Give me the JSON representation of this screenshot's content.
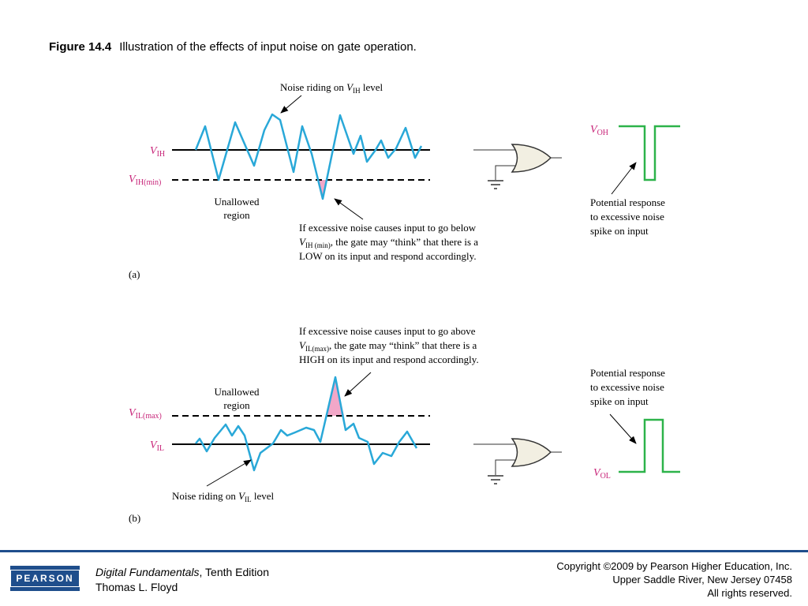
{
  "title": {
    "figure_label": "Figure 14.4",
    "caption": "Illustration of the effects of input noise on gate operation."
  },
  "panel_a": {
    "annotation_top_prefix": "Noise riding on ",
    "annotation_top_V": "V",
    "annotation_top_sub": "IH",
    "annotation_top_suffix": " level",
    "label_vih_V": "V",
    "label_vih_sub": "IH",
    "label_vihmin_V": "V",
    "label_vihmin_sub": "IH(min)",
    "unallowed_line1": "Unallowed",
    "unallowed_line2": "region",
    "explain_line1": "If excessive noise causes input to go below",
    "explain_line2_V": "V",
    "explain_line2_sub": "IH (min)",
    "explain_line2_rest": ", the gate may “think” that there is a",
    "explain_line3": "LOW on its input and respond accordingly.",
    "voh_V": "V",
    "voh_sub": "OH",
    "response_line1": "Potential response",
    "response_line2": "to excessive noise",
    "response_line3": "spike on input",
    "panel_label": "(a)"
  },
  "panel_b": {
    "explain_line1": "If excessive noise causes input to go above",
    "explain_line2_V": "V",
    "explain_line2_sub": "IL(max)",
    "explain_line2_rest": ", the gate may “think” that there is a",
    "explain_line3": "HIGH on its input and respond accordingly.",
    "unallowed_line1": "Unallowed",
    "unallowed_line2": "region",
    "label_vilmax_V": "V",
    "label_vilmax_sub": "IL(max)",
    "label_vil_V": "V",
    "label_vil_sub": "IL",
    "annotation_bottom_prefix": "Noise riding on ",
    "annotation_bottom_V": "V",
    "annotation_bottom_sub": "IL",
    "annotation_bottom_suffix": " level",
    "response_line1": "Potential response",
    "response_line2": "to excessive noise",
    "response_line3": "spike on input",
    "vol_V": "V",
    "vol_sub": "OL",
    "panel_label": "(b)"
  },
  "colors": {
    "noise": "#29a8d8",
    "label_magenta": "#c8267a",
    "output_green": "#2db34a",
    "spike_fill": "#f2a7c8",
    "footer_blue": "#1f4e8c"
  },
  "footer": {
    "logo_text": "PEARSON",
    "book_title": "Digital Fundamentals",
    "book_edition": ", Tenth Edition",
    "book_author": "Thomas L. Floyd",
    "copyright_line1": "Copyright ©2009 by Pearson Higher Education, Inc.",
    "copyright_line2": "Upper Saddle River, New Jersey 07458",
    "copyright_line3": "All rights reserved."
  }
}
